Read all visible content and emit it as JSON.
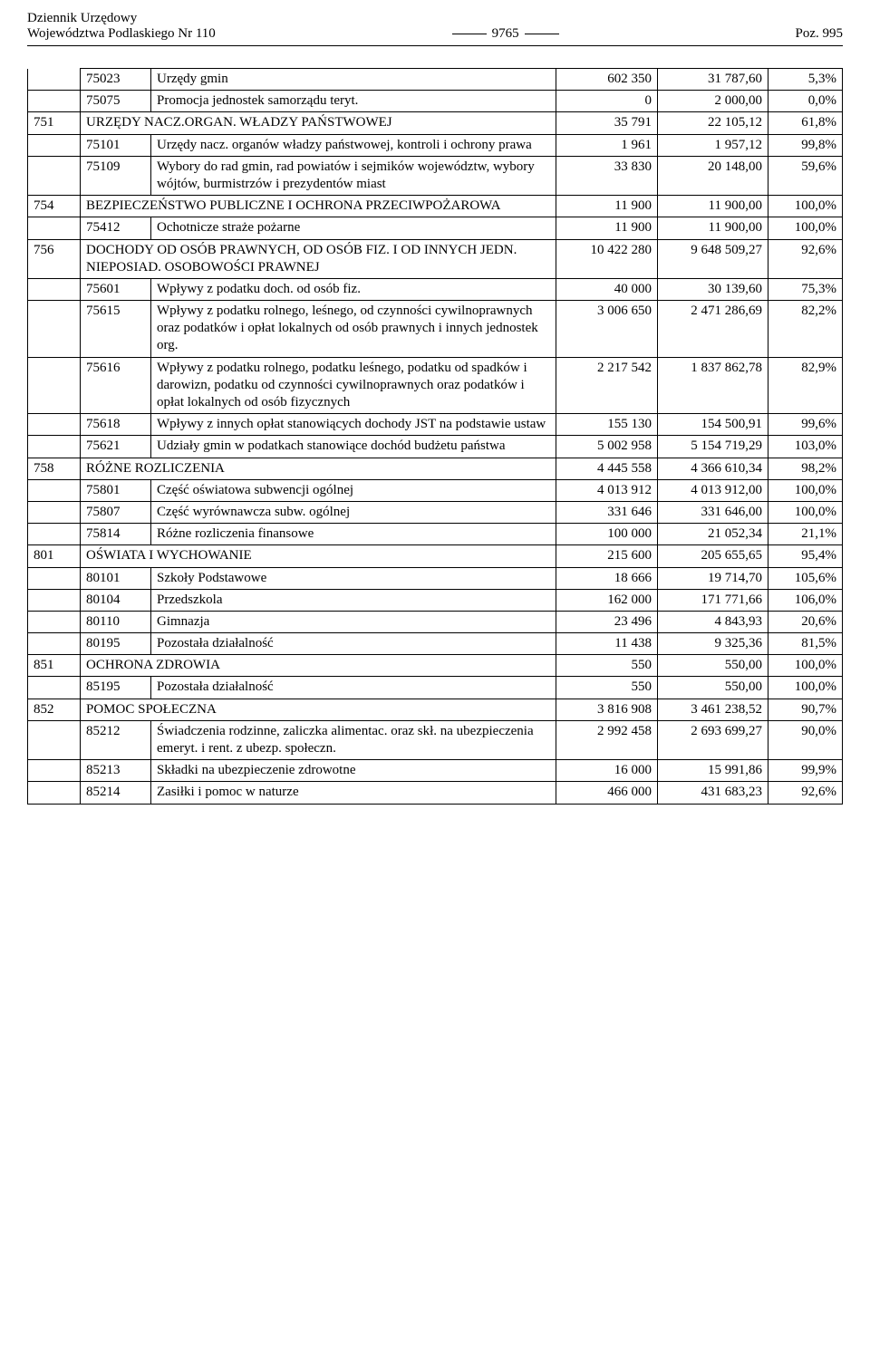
{
  "header": {
    "line1": "Dziennik Urzędowy",
    "line2": "Województwa Podlaskiego Nr 110",
    "page_number": "9765",
    "poz": "Poz. 995"
  },
  "rows": [
    {
      "c1": "",
      "c2": "75023",
      "desc": "Urzędy gmin",
      "v1": "602 350",
      "v2": "31 787,60",
      "v3": "5,3%",
      "c1_no_top": true
    },
    {
      "c1": "",
      "c2": "75075",
      "desc": "Promocja jednostek samorządu teryt.",
      "v1": "0",
      "v2": "2 000,00",
      "v3": "0,0%"
    },
    {
      "c1": "751",
      "c2": "",
      "desc": "URZĘDY NACZ.ORGAN. WŁADZY PAŃSTWOWEJ",
      "v1": "35 791",
      "v2": "22 105,12",
      "v3": "61,8%",
      "span12": true
    },
    {
      "c1": "",
      "c2": "75101",
      "desc": "Urzędy nacz. organów władzy państwowej, kontroli i ochrony prawa",
      "v1": "1 961",
      "v2": "1 957,12",
      "v3": "99,8%"
    },
    {
      "c1": "",
      "c2": "75109",
      "desc": "Wybory do rad gmin, rad powiatów i sejmików województw, wybory wójtów, burmistrzów i prezydentów miast",
      "v1": "33 830",
      "v2": "20 148,00",
      "v3": "59,6%"
    },
    {
      "c1": "754",
      "c2": "",
      "desc": "BEZPIECZEŃSTWO PUBLICZNE I OCHRONA PRZECIWPOŻAROWA",
      "v1": "11 900",
      "v2": "11 900,00",
      "v3": "100,0%",
      "span12": true
    },
    {
      "c1": "",
      "c2": "75412",
      "desc": "Ochotnicze straże pożarne",
      "v1": "11 900",
      "v2": "11 900,00",
      "v3": "100,0%"
    },
    {
      "c1": "756",
      "c2": "",
      "desc": "DOCHODY OD OSÓB PRAWNYCH, OD OSÓB FIZ. I OD INNYCH JEDN. NIEPOSIAD. OSOBOWOŚCI PRAWNEJ",
      "v1": "10 422 280",
      "v2": "9 648 509,27",
      "v3": "92,6%",
      "span12": true
    },
    {
      "c1": "",
      "c2": "75601",
      "desc": "Wpływy z podatku doch. od osób fiz.",
      "v1": "40 000",
      "v2": "30 139,60",
      "v3": "75,3%"
    },
    {
      "c1": "",
      "c2": "75615",
      "desc": "Wpływy z podatku rolnego, leśnego, od czynności cywilnoprawnych oraz podatków i opłat lokalnych od osób prawnych i innych jednostek org.",
      "v1": "3 006 650",
      "v2": "2 471 286,69",
      "v3": "82,2%"
    },
    {
      "c1": "",
      "c2": "75616",
      "desc": "Wpływy z podatku rolnego, podatku leśnego, podatku od spadków i darowizn, podatku od czynności cywilnoprawnych oraz podatków i opłat lokalnych od osób fizycznych",
      "v1": "2 217 542",
      "v2": "1 837 862,78",
      "v3": "82,9%"
    },
    {
      "c1": "",
      "c2": "75618",
      "desc": "Wpływy z innych opłat stanowiących dochody JST na podstawie ustaw",
      "v1": "155 130",
      "v2": "154 500,91",
      "v3": "99,6%"
    },
    {
      "c1": "",
      "c2": "75621",
      "desc": "Udziały gmin w podatkach stanowiące dochód budżetu państwa",
      "v1": "5 002 958",
      "v2": "5 154 719,29",
      "v3": "103,0%"
    },
    {
      "c1": "758",
      "c2": "",
      "desc": "RÓŻNE ROZLICZENIA",
      "v1": "4 445 558",
      "v2": "4 366 610,34",
      "v3": "98,2%",
      "span12": true
    },
    {
      "c1": "",
      "c2": "75801",
      "desc": "Część oświatowa subwencji ogólnej",
      "v1": "4 013 912",
      "v2": "4 013 912,00",
      "v3": "100,0%"
    },
    {
      "c1": "",
      "c2": "75807",
      "desc": "Część wyrównawcza subw. ogólnej",
      "v1": "331 646",
      "v2": "331 646,00",
      "v3": "100,0%"
    },
    {
      "c1": "",
      "c2": "75814",
      "desc": "Różne rozliczenia finansowe",
      "v1": "100 000",
      "v2": "21 052,34",
      "v3": "21,1%"
    },
    {
      "c1": "801",
      "c2": "",
      "desc": "OŚWIATA I WYCHOWANIE",
      "v1": "215 600",
      "v2": "205 655,65",
      "v3": "95,4%",
      "span12": true
    },
    {
      "c1": "",
      "c2": "80101",
      "desc": "Szkoły Podstawowe",
      "v1": "18 666",
      "v2": "19 714,70",
      "v3": "105,6%"
    },
    {
      "c1": "",
      "c2": "80104",
      "desc": "Przedszkola",
      "v1": "162 000",
      "v2": "171 771,66",
      "v3": "106,0%"
    },
    {
      "c1": "",
      "c2": "80110",
      "desc": "Gimnazja",
      "v1": "23 496",
      "v2": "4 843,93",
      "v3": "20,6%"
    },
    {
      "c1": "",
      "c2": "80195",
      "desc": "Pozostała działalność",
      "v1": "11 438",
      "v2": "9 325,36",
      "v3": "81,5%"
    },
    {
      "c1": "851",
      "c2": "",
      "desc": "OCHRONA ZDROWIA",
      "v1": "550",
      "v2": "550,00",
      "v3": "100,0%",
      "span12": true
    },
    {
      "c1": "",
      "c2": "85195",
      "desc": "Pozostała działalność",
      "v1": "550",
      "v2": "550,00",
      "v3": "100,0%"
    },
    {
      "c1": "852",
      "c2": "",
      "desc": "POMOC SPOŁECZNA",
      "v1": "3 816 908",
      "v2": "3 461 238,52",
      "v3": "90,7%",
      "span12": true
    },
    {
      "c1": "",
      "c2": "85212",
      "desc": "Świadczenia rodzinne, zaliczka alimentac. oraz skł. na ubezpieczenia emeryt. i rent. z ubezp. społeczn.",
      "v1": "2 992 458",
      "v2": "2 693 699,27",
      "v3": "90,0%"
    },
    {
      "c1": "",
      "c2": "85213",
      "desc": "Składki na ubezpieczenie zdrowotne",
      "v1": "16 000",
      "v2": "15 991,86",
      "v3": "99,9%"
    },
    {
      "c1": "",
      "c2": "85214",
      "desc": "Zasiłki i pomoc w naturze",
      "v1": "466 000",
      "v2": "431 683,23",
      "v3": "92,6%"
    }
  ]
}
